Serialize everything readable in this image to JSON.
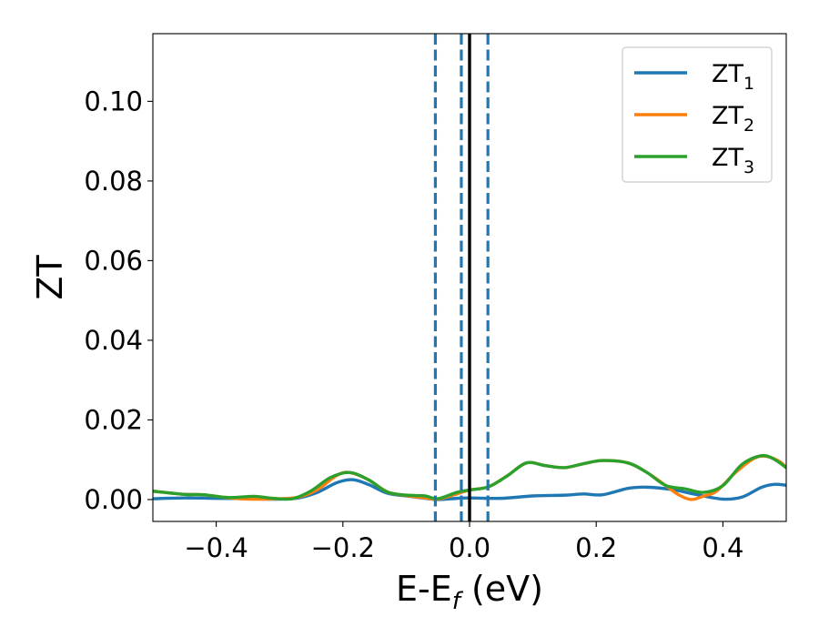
{
  "chart_data": {
    "type": "line",
    "xlabel": {
      "main": "E-E",
      "sub": "f",
      "tail": " (eV)"
    },
    "ylabel": "ZT",
    "xlim": [
      -0.5,
      0.5
    ],
    "ylim": [
      -0.0055,
      0.117
    ],
    "xticks": [
      -0.4,
      -0.2,
      0.0,
      0.2,
      0.4
    ],
    "xtick_labels": [
      "−0.4",
      "−0.2",
      "0.0",
      "0.2",
      "0.4"
    ],
    "yticks": [
      0.0,
      0.02,
      0.04,
      0.06,
      0.08,
      0.1
    ],
    "ytick_labels": [
      "0.00",
      "0.02",
      "0.04",
      "0.06",
      "0.08",
      "0.10"
    ],
    "grid": false,
    "legend_position": "top-right",
    "vlines": [
      {
        "x": 0.0,
        "style": "solid",
        "color": "#000000"
      },
      {
        "x": -0.054,
        "style": "dashed",
        "color": "#1f77b4"
      },
      {
        "x": -0.013,
        "style": "dashed",
        "color": "#1f77b4"
      },
      {
        "x": 0.029,
        "style": "dashed",
        "color": "#1f77b4"
      }
    ],
    "series": [
      {
        "name": "ZT",
        "sub": "1",
        "color": "#1f77b4",
        "points": [
          [
            -0.5,
            0.0002
          ],
          [
            -0.45,
            0.0004
          ],
          [
            -0.4,
            0.0003
          ],
          [
            -0.35,
            0.0002
          ],
          [
            -0.3,
            0.0001
          ],
          [
            -0.27,
            0.0004
          ],
          [
            -0.24,
            0.0018
          ],
          [
            -0.21,
            0.0042
          ],
          [
            -0.185,
            0.005
          ],
          [
            -0.16,
            0.0038
          ],
          [
            -0.13,
            0.0016
          ],
          [
            -0.1,
            0.0009
          ],
          [
            -0.07,
            0.0003
          ],
          [
            -0.05,
            0.0
          ],
          [
            -0.02,
            0.0003
          ],
          [
            0.0,
            0.0004
          ],
          [
            0.05,
            0.0003
          ],
          [
            0.1,
            0.0009
          ],
          [
            0.15,
            0.0011
          ],
          [
            0.18,
            0.0014
          ],
          [
            0.21,
            0.0012
          ],
          [
            0.25,
            0.0028
          ],
          [
            0.28,
            0.0031
          ],
          [
            0.32,
            0.0025
          ],
          [
            0.36,
            0.0012
          ],
          [
            0.4,
            0.0001
          ],
          [
            0.43,
            0.0006
          ],
          [
            0.46,
            0.003
          ],
          [
            0.48,
            0.0038
          ],
          [
            0.5,
            0.0036
          ]
        ]
      },
      {
        "name": "ZT",
        "sub": "2",
        "color": "#ff7f0e",
        "points": [
          [
            -0.5,
            0.0021
          ],
          [
            -0.45,
            0.0013
          ],
          [
            -0.42,
            0.0012
          ],
          [
            -0.38,
            0.0004
          ],
          [
            -0.34,
            0.0001
          ],
          [
            -0.3,
            0.0002
          ],
          [
            -0.27,
            0.0006
          ],
          [
            -0.24,
            0.0025
          ],
          [
            -0.21,
            0.006
          ],
          [
            -0.19,
            0.0068
          ],
          [
            -0.16,
            0.005
          ],
          [
            -0.13,
            0.0019
          ],
          [
            -0.1,
            0.001
          ],
          [
            -0.07,
            0.0004
          ],
          [
            -0.05,
            0.0001
          ],
          [
            -0.02,
            0.0014
          ],
          [
            0.0,
            0.0024
          ],
          [
            0.03,
            0.0032
          ],
          [
            0.06,
            0.006
          ],
          [
            0.09,
            0.0092
          ],
          [
            0.12,
            0.0085
          ],
          [
            0.15,
            0.008
          ],
          [
            0.18,
            0.009
          ],
          [
            0.21,
            0.0098
          ],
          [
            0.25,
            0.0092
          ],
          [
            0.28,
            0.0068
          ],
          [
            0.31,
            0.0035
          ],
          [
            0.33,
            0.0012
          ],
          [
            0.35,
            0.0
          ],
          [
            0.37,
            0.0009
          ],
          [
            0.39,
            0.0021
          ],
          [
            0.42,
            0.0068
          ],
          [
            0.45,
            0.0104
          ],
          [
            0.47,
            0.0108
          ],
          [
            0.49,
            0.0095
          ],
          [
            0.5,
            0.008
          ]
        ]
      },
      {
        "name": "ZT",
        "sub": "3",
        "color": "#2ca02c",
        "points": [
          [
            -0.5,
            0.0021
          ],
          [
            -0.45,
            0.0013
          ],
          [
            -0.42,
            0.0012
          ],
          [
            -0.38,
            0.0005
          ],
          [
            -0.34,
            0.0008
          ],
          [
            -0.31,
            0.0003
          ],
          [
            -0.28,
            0.0002
          ],
          [
            -0.25,
            0.0022
          ],
          [
            -0.22,
            0.0055
          ],
          [
            -0.19,
            0.0068
          ],
          [
            -0.16,
            0.005
          ],
          [
            -0.13,
            0.0019
          ],
          [
            -0.1,
            0.0011
          ],
          [
            -0.07,
            0.0009
          ],
          [
            -0.05,
            0.0002
          ],
          [
            -0.02,
            0.0018
          ],
          [
            0.0,
            0.0024
          ],
          [
            0.03,
            0.0032
          ],
          [
            0.06,
            0.006
          ],
          [
            0.09,
            0.0092
          ],
          [
            0.12,
            0.0085
          ],
          [
            0.15,
            0.008
          ],
          [
            0.18,
            0.009
          ],
          [
            0.21,
            0.0098
          ],
          [
            0.25,
            0.0092
          ],
          [
            0.28,
            0.0068
          ],
          [
            0.31,
            0.0035
          ],
          [
            0.34,
            0.0027
          ],
          [
            0.37,
            0.0018
          ],
          [
            0.4,
            0.0035
          ],
          [
            0.43,
            0.0088
          ],
          [
            0.46,
            0.011
          ],
          [
            0.48,
            0.0102
          ],
          [
            0.5,
            0.008
          ]
        ]
      }
    ]
  }
}
